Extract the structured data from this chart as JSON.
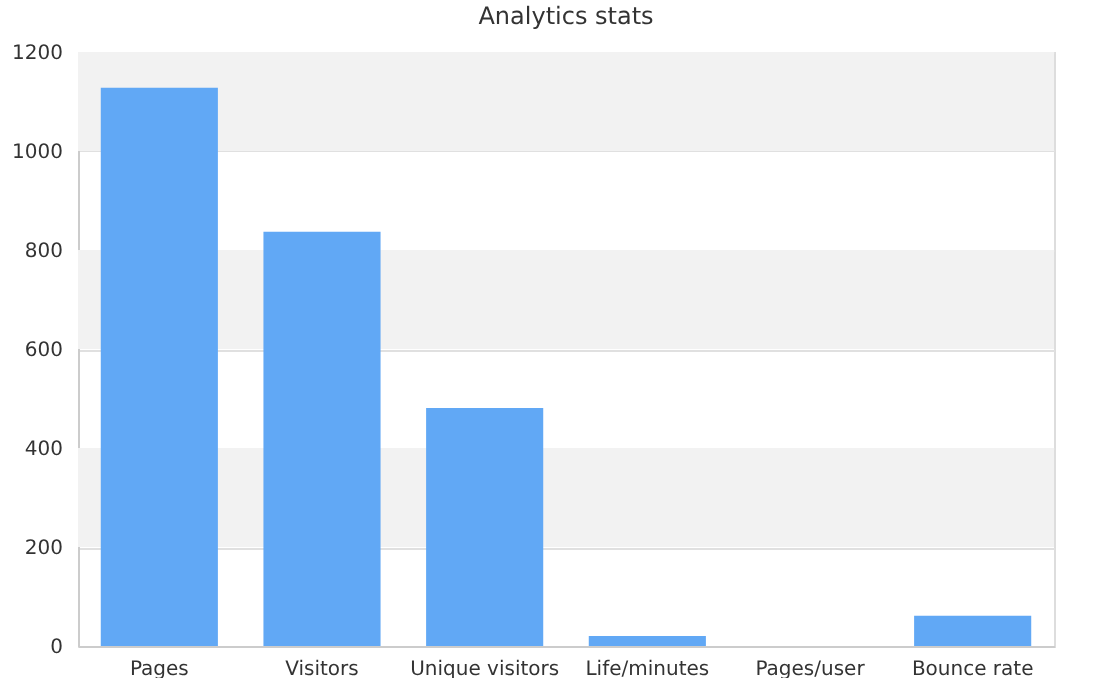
{
  "chart_data": {
    "type": "bar",
    "title": "Analytics stats",
    "categories": [
      "Pages",
      "Visitors",
      "Unique visitors",
      "Life/minutes",
      "Pages/user",
      "Bounce rate"
    ],
    "values": [
      1128,
      837,
      481,
      20,
      null,
      61
    ],
    "color": "#61a8f5",
    "ylim": [
      0,
      1200
    ],
    "yticks": [
      0,
      200,
      400,
      600,
      800,
      1000,
      1200
    ],
    "grid": "y",
    "bands": [
      {
        "axis": "y",
        "from": 200,
        "to": 400,
        "color": "#f2f2f2"
      },
      {
        "axis": "y",
        "from": 600,
        "to": 800,
        "color": "#f2f2f2"
      },
      {
        "axis": "y",
        "from": 1000,
        "to": 1200,
        "color": "#f2f2f2"
      }
    ]
  }
}
